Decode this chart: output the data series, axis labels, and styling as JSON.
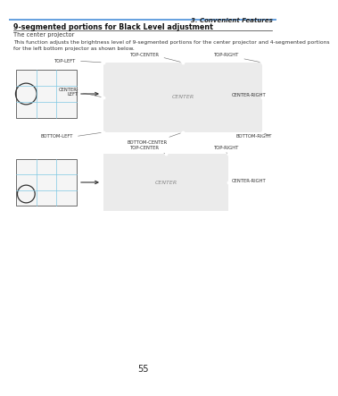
{
  "title_bold": "9-segmented portions for Black Level adjustment",
  "subtitle": "The center projector",
  "body_text": "This function adjusts the brightness level of 9-segmented portions for the center projector and 4-segmented portions\nfor the left bottom projector as shown below.",
  "header_text": "3. Convenient Features",
  "page_number": "55",
  "bg_color": "#ffffff",
  "header_line_color": "#4a90d9",
  "grid_line_color": "#7ec8e3"
}
